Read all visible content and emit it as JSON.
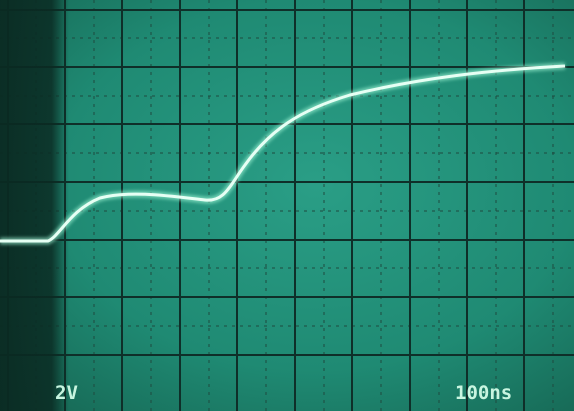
{
  "labels": {
    "volts_per_div": "2V",
    "time_per_div": "100ns"
  }
}
